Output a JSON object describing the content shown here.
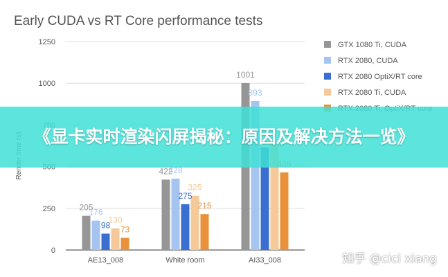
{
  "chart_data": {
    "type": "bar",
    "title": "Early CUDA vs RT Core performance tests",
    "ylabel": "Render time (s)",
    "xlabel": "",
    "ylim": [
      0,
      1250
    ],
    "yticks": [
      "0",
      "250",
      "500",
      "750",
      "1000",
      "1250"
    ],
    "grid": true,
    "legend_position": "right",
    "categories": [
      "AE13_008",
      "White room",
      "AI33_008"
    ],
    "series": [
      {
        "name": "GTX 1080 Ti, CUDA",
        "values": [
          205,
          422,
          1001
        ],
        "labels": [
          "205",
          "422",
          "1001"
        ],
        "color": "#969696"
      },
      {
        "name": "RTX 2080, CUDA",
        "values": [
          176,
          428,
          893
        ],
        "labels": [
          "176",
          "428",
          "893"
        ],
        "color": "#a6c4f0"
      },
      {
        "name": "RTX 2080 OptiX/RT core",
        "values": [
          98,
          275,
          615
        ],
        "labels": [
          "98",
          "275",
          ""
        ],
        "color": "#3a6fd1"
      },
      {
        "name": "RTX 2080 Ti, CUDA",
        "values": [
          130,
          325,
          652
        ],
        "labels": [
          "130",
          "325",
          ""
        ],
        "color": "#f5c99a"
      },
      {
        "name": "RTX 2080 Ti, OptiX/RT core",
        "values": [
          73,
          215,
          465
        ],
        "labels": [
          "73",
          "215",
          "465"
        ],
        "color": "#e8913a"
      }
    ]
  },
  "overlay": {
    "banner_text": "《显卡实时渲染闪屏揭秘：原因及解决方法一览》",
    "watermark": "知乎 @cici xiang"
  }
}
